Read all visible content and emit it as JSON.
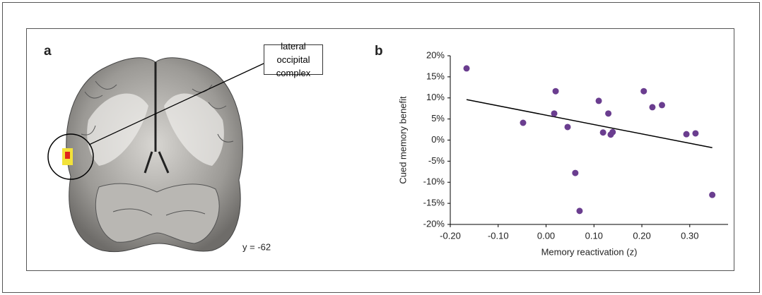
{
  "panel_a": {
    "label": "a",
    "callout": "lateral occipital complex",
    "coordinate": "y = -62"
  },
  "chart_data": {
    "type": "scatter",
    "panel_label": "b",
    "x_label": "Memory reactivation (z)",
    "y_label": "Cued memory benefit",
    "x": [
      -0.166,
      -0.048,
      0.017,
      0.02,
      0.045,
      0.061,
      0.07,
      0.11,
      0.119,
      0.13,
      0.135,
      0.139,
      0.204,
      0.222,
      0.242,
      0.293,
      0.312,
      0.347
    ],
    "values": [
      17.0,
      4.1,
      6.3,
      11.6,
      3.1,
      -7.8,
      -16.8,
      9.3,
      1.8,
      6.3,
      1.3,
      1.9,
      11.6,
      7.8,
      8.3,
      1.4,
      1.6,
      -13.0
    ],
    "color": "#6a3d8f",
    "trendline": {
      "x": [
        -0.166,
        0.347
      ],
      "values": [
        9.6,
        -1.8
      ],
      "color": "#000000"
    },
    "xlim": [
      -0.2,
      0.38
    ],
    "ylim": [
      -20,
      20
    ],
    "xticks": [
      {
        "value": -0.2,
        "label": "-0.20"
      },
      {
        "value": -0.1,
        "label": "-0.10"
      },
      {
        "value": 0,
        "label": "0.00"
      },
      {
        "value": 0.1,
        "label": "0.10"
      },
      {
        "value": 0.2,
        "label": "0.20"
      },
      {
        "value": 0.3,
        "label": "0.30"
      }
    ],
    "yticks": [
      {
        "value": -20,
        "label": "-20%"
      },
      {
        "value": -15,
        "label": "-15%"
      },
      {
        "value": -10,
        "label": "-10%"
      },
      {
        "value": -5,
        "label": "-5%"
      },
      {
        "value": 0,
        "label": "0%"
      },
      {
        "value": 5,
        "label": "5%"
      },
      {
        "value": 10,
        "label": "10%"
      },
      {
        "value": 15,
        "label": "15%"
      },
      {
        "value": 20,
        "label": "20%"
      }
    ],
    "grid": false
  }
}
